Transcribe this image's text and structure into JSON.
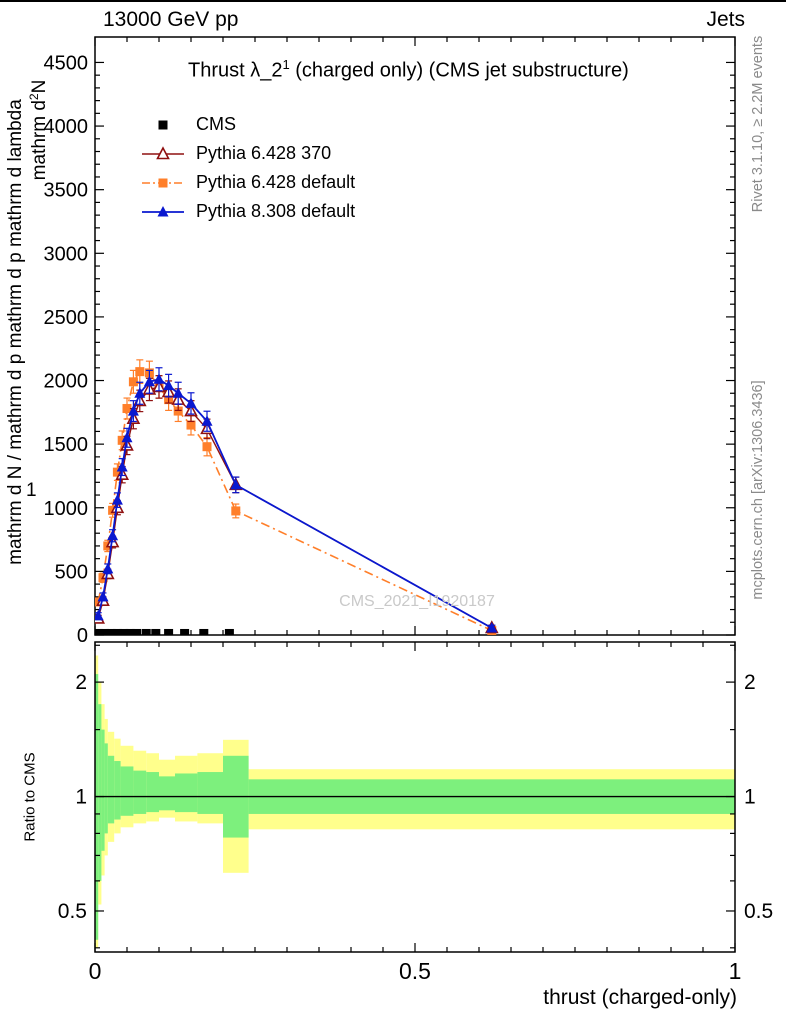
{
  "page": {
    "header": {
      "left": "13000 GeV pp",
      "right": "Jets"
    },
    "title": {
      "pre": "Thrust λ_2",
      "sup": "1",
      "post": " (charged only) (CMS jet substructure)"
    },
    "watermark": "CMS_2021_I1920187",
    "side_notes": {
      "top_right": "Rivet 3.1.10, ≥ 2.2M events",
      "bottom_right": "mcplots.cern.ch [arXiv:1306.3436]"
    },
    "ylabel": {
      "long": "mathrm d N / mathrm d p mathrm d p mathrm d lambda",
      "num_pre": "mathrm d",
      "num_sup": "2",
      "num_post": "N",
      "one": "1"
    },
    "ratio_label": "Ratio to CMS",
    "xlabel": "thrust (charged-only)"
  },
  "chart_data": {
    "type": "line",
    "title": "Thrust λ_2^1 (charged only) (CMS jet substructure)",
    "xlabel": "thrust (charged-only)",
    "ylabel": "mathrm d²N / mathrm d N mathrm d p mathrm d lambda",
    "ylabel_ratio": "Ratio to CMS",
    "xlim": [
      0,
      1
    ],
    "ylim_main": [
      0,
      4700
    ],
    "ylim_ratio": [
      0.39,
      2.55
    ],
    "ratio_log": true,
    "x_major_ticks": [
      0,
      0.5,
      1
    ],
    "x_major_labels": [
      "0",
      "0.5",
      "1"
    ],
    "x_minor_step": 0.05,
    "y_major_step": 500,
    "y_minor_step": 100,
    "ratio_ticks": [
      0.5,
      1,
      2
    ],
    "ratio_tick_labels": [
      "0.5",
      "1",
      "2"
    ],
    "ratio_minor_ticks": [
      0.4,
      0.6,
      0.7,
      0.8,
      0.9,
      1.5,
      2.5
    ],
    "yerr_frac": 0.035,
    "colors": {
      "band_yellow": "#ffff8c",
      "band_green": "#7df07d",
      "frame": "#000000"
    },
    "draw_order": [
      2,
      1,
      3,
      0
    ],
    "series": [
      {
        "name": "CMS",
        "marker": "square",
        "color": "#000000",
        "line": null,
        "width": 0,
        "x": [
          0.005,
          0.015,
          0.025,
          0.035,
          0.045,
          0.055,
          0.065,
          0.08,
          0.095,
          0.115,
          0.14,
          0.17,
          0.21
        ],
        "y": [
          12,
          12,
          12,
          12,
          12,
          12,
          12,
          12,
          12,
          12,
          12,
          12,
          12
        ]
      },
      {
        "name": "Pythia 6.428 370",
        "marker": "triangle-open",
        "color": "#8f1010",
        "line": "solid",
        "width": 1.4,
        "x": [
          0.005,
          0.0125,
          0.02,
          0.0275,
          0.035,
          0.0425,
          0.05,
          0.06,
          0.07,
          0.085,
          0.1,
          0.115,
          0.13,
          0.15,
          0.175,
          0.22,
          0.62
        ],
        "y": [
          130,
          270,
          480,
          730,
          1000,
          1260,
          1490,
          1700,
          1840,
          1930,
          1950,
          1910,
          1850,
          1760,
          1620,
          1180,
          55
        ]
      },
      {
        "name": "Pythia 6.428 default",
        "marker": "square",
        "color": "#ff7f2a",
        "line": "dashdot",
        "width": 1.6,
        "x": [
          0.005,
          0.0125,
          0.02,
          0.0275,
          0.035,
          0.0425,
          0.05,
          0.06,
          0.07,
          0.085,
          0.1,
          0.115,
          0.13,
          0.15,
          0.175,
          0.22,
          0.62
        ],
        "y": [
          260,
          450,
          700,
          980,
          1280,
          1530,
          1780,
          1990,
          2070,
          2060,
          1950,
          1850,
          1760,
          1650,
          1480,
          975,
          35
        ]
      },
      {
        "name": "Pythia 8.308 default",
        "marker": "triangle",
        "color": "#0a18cf",
        "line": "solid",
        "width": 1.8,
        "x": [
          0.005,
          0.0125,
          0.02,
          0.0275,
          0.035,
          0.0425,
          0.05,
          0.06,
          0.07,
          0.085,
          0.1,
          0.115,
          0.13,
          0.15,
          0.175,
          0.22,
          0.62
        ],
        "y": [
          150,
          300,
          520,
          780,
          1060,
          1320,
          1550,
          1760,
          1900,
          1990,
          2010,
          1960,
          1900,
          1820,
          1680,
          1180,
          55
        ]
      }
    ],
    "ratio_bands": [
      {
        "x0": 0.0,
        "x1": 0.005,
        "yellow": [
          0.4,
          2.35
        ],
        "green": [
          0.42,
          2.1
        ]
      },
      {
        "x0": 0.005,
        "x1": 0.01,
        "yellow": [
          0.52,
          2.0
        ],
        "green": [
          0.6,
          1.75
        ]
      },
      {
        "x0": 0.01,
        "x1": 0.015,
        "yellow": [
          0.62,
          1.75
        ],
        "green": [
          0.72,
          1.5
        ]
      },
      {
        "x0": 0.015,
        "x1": 0.02,
        "yellow": [
          0.7,
          1.6
        ],
        "green": [
          0.8,
          1.38
        ]
      },
      {
        "x0": 0.02,
        "x1": 0.03,
        "yellow": [
          0.76,
          1.48
        ],
        "green": [
          0.85,
          1.28
        ]
      },
      {
        "x0": 0.03,
        "x1": 0.04,
        "yellow": [
          0.8,
          1.42
        ],
        "green": [
          0.87,
          1.24
        ]
      },
      {
        "x0": 0.04,
        "x1": 0.06,
        "yellow": [
          0.83,
          1.36
        ],
        "green": [
          0.89,
          1.2
        ]
      },
      {
        "x0": 0.06,
        "x1": 0.08,
        "yellow": [
          0.85,
          1.32
        ],
        "green": [
          0.9,
          1.17
        ]
      },
      {
        "x0": 0.08,
        "x1": 0.1,
        "yellow": [
          0.86,
          1.3
        ],
        "green": [
          0.91,
          1.16
        ]
      },
      {
        "x0": 0.1,
        "x1": 0.125,
        "yellow": [
          0.88,
          1.25
        ],
        "green": [
          0.92,
          1.13
        ]
      },
      {
        "x0": 0.125,
        "x1": 0.16,
        "yellow": [
          0.86,
          1.28
        ],
        "green": [
          0.91,
          1.15
        ]
      },
      {
        "x0": 0.16,
        "x1": 0.2,
        "yellow": [
          0.85,
          1.3
        ],
        "green": [
          0.9,
          1.16
        ]
      },
      {
        "x0": 0.2,
        "x1": 0.24,
        "yellow": [
          0.63,
          1.41
        ],
        "green": [
          0.78,
          1.28
        ]
      },
      {
        "x0": 0.24,
        "x1": 1.0,
        "yellow": [
          0.82,
          1.18
        ],
        "green": [
          0.9,
          1.11
        ]
      }
    ]
  }
}
